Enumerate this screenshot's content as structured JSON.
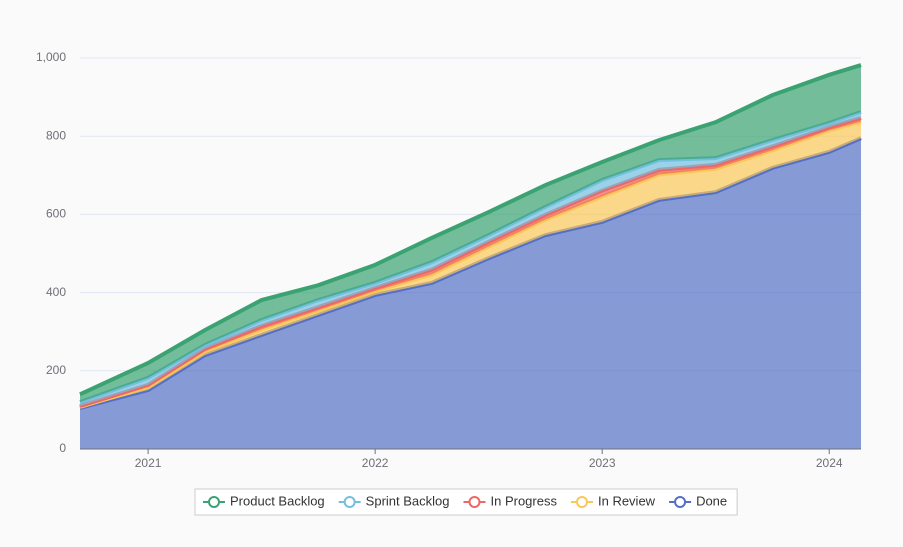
{
  "chart_data": {
    "type": "stacked-area",
    "x": [
      2020.7,
      2021.0,
      2021.25,
      2021.5,
      2021.75,
      2022.0,
      2022.25,
      2022.5,
      2022.75,
      2023.0,
      2023.25,
      2023.5,
      2023.75,
      2024.0,
      2024.14
    ],
    "xlim": [
      2020.7,
      2024.14
    ],
    "xticks": [
      2021,
      2022,
      2023,
      2024
    ],
    "ylim": [
      0,
      1000
    ],
    "yticks": [
      0,
      200,
      400,
      600,
      800,
      {
        "value": 1000,
        "label": "1,000"
      }
    ],
    "grid": true,
    "legend": "bottom",
    "series": [
      {
        "name": "Done",
        "color": "#5470c6",
        "values": [
          105,
          151,
          240,
          292,
          343,
          394,
          425,
          488,
          547,
          581,
          637,
          657,
          719,
          760,
          795
        ]
      },
      {
        "name": "In Review",
        "color": "#fac858",
        "values": [
          3,
          8,
          10,
          14,
          12,
          10,
          22,
          30,
          40,
          65,
          65,
          60,
          45,
          55,
          42
        ]
      },
      {
        "name": "In Progress",
        "color": "#ee6666",
        "values": [
          2,
          5,
          6,
          9,
          8,
          8,
          12,
          12,
          12,
          15,
          12,
          10,
          10,
          8,
          10
        ]
      },
      {
        "name": "Sprint Backlog",
        "color": "#73c0de",
        "values": [
          10,
          18,
          10,
          15,
          18,
          13,
          19,
          17,
          20,
          27,
          25,
          17,
          16,
          11,
          15
        ]
      },
      {
        "name": "Product Backlog",
        "color": "#3ba272",
        "values": [
          20,
          38,
          38,
          51,
          38,
          46,
          62,
          59,
          56,
          46,
          51,
          92,
          115,
          123,
          120
        ]
      }
    ],
    "legend_order": [
      "Product Backlog",
      "Sprint Backlog",
      "In Progress",
      "In Review",
      "Done"
    ]
  }
}
